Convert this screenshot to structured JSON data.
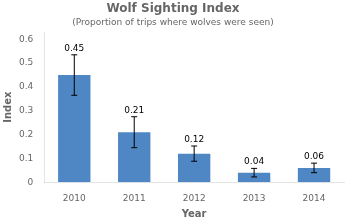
{
  "chart_data": {
    "type": "bar",
    "title": "Wolf Sighting Index",
    "subtitle": "(Proportion of trips where wolves were seen)",
    "xlabel": "Year",
    "ylabel": "Index",
    "categories": [
      "2010",
      "2011",
      "2012",
      "2013",
      "2014"
    ],
    "values": [
      0.45,
      0.21,
      0.12,
      0.04,
      0.06
    ],
    "errors": [
      0.085,
      0.065,
      0.032,
      0.018,
      0.02
    ],
    "color": "#4E87C4",
    "ylim": [
      0,
      0.63
    ],
    "yticks": [
      0,
      0.1,
      0.2,
      0.3,
      0.4,
      0.5,
      0.6
    ],
    "grid": false,
    "data_labels": true
  }
}
